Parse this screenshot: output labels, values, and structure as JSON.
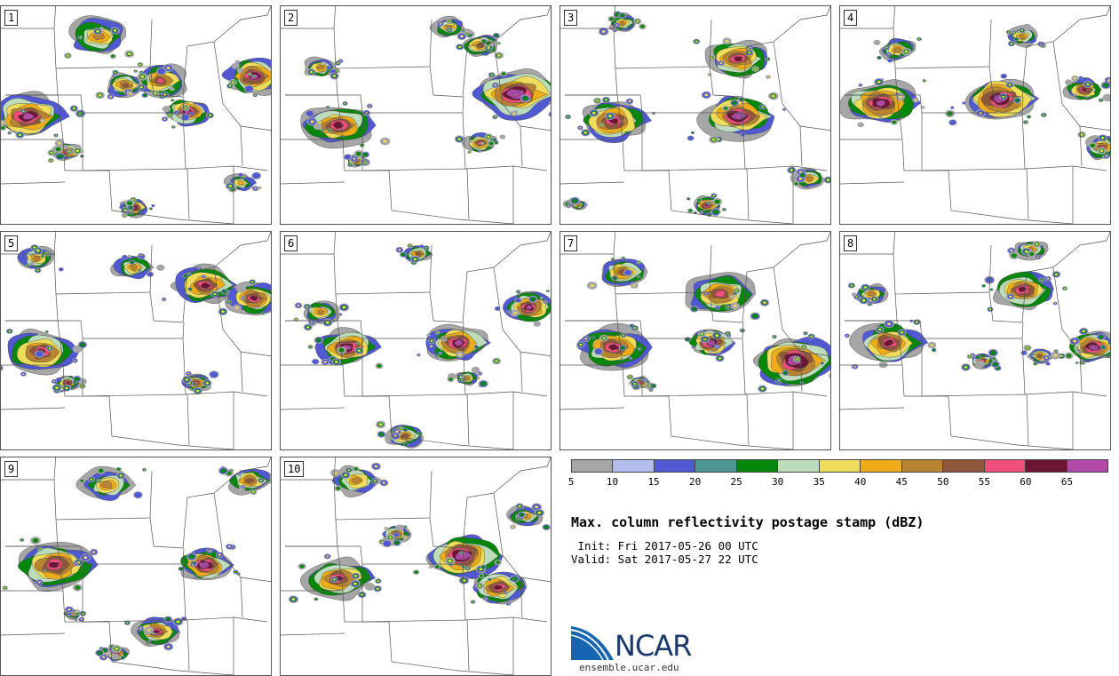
{
  "panels": [
    {
      "label": "1"
    },
    {
      "label": "2"
    },
    {
      "label": "3"
    },
    {
      "label": "4"
    },
    {
      "label": "5"
    },
    {
      "label": "6"
    },
    {
      "label": "7"
    },
    {
      "label": "8"
    },
    {
      "label": "9"
    },
    {
      "label": "10"
    }
  ],
  "colorbar": {
    "colors": [
      "#a6a6a6",
      "#b3bdee",
      "#5059d2",
      "#4d9696",
      "#06860a",
      "#bcdcbc",
      "#eedc5a",
      "#eeac18",
      "#b98431",
      "#8e563b",
      "#f04f7b",
      "#6a1634",
      "#b14aa9"
    ],
    "ticks": [
      "5",
      "10",
      "15",
      "20",
      "25",
      "30",
      "35",
      "40",
      "45",
      "50",
      "55",
      "60",
      "65"
    ]
  },
  "title": "Max. column reflectivity postage stamp (dBZ)",
  "init": " Init: Fri 2017-05-26 00 UTC",
  "valid": "Valid: Sat 2017-05-27 22 UTC",
  "logo": {
    "text": "NCAR",
    "site": "ensemble.ucar.edu"
  }
}
